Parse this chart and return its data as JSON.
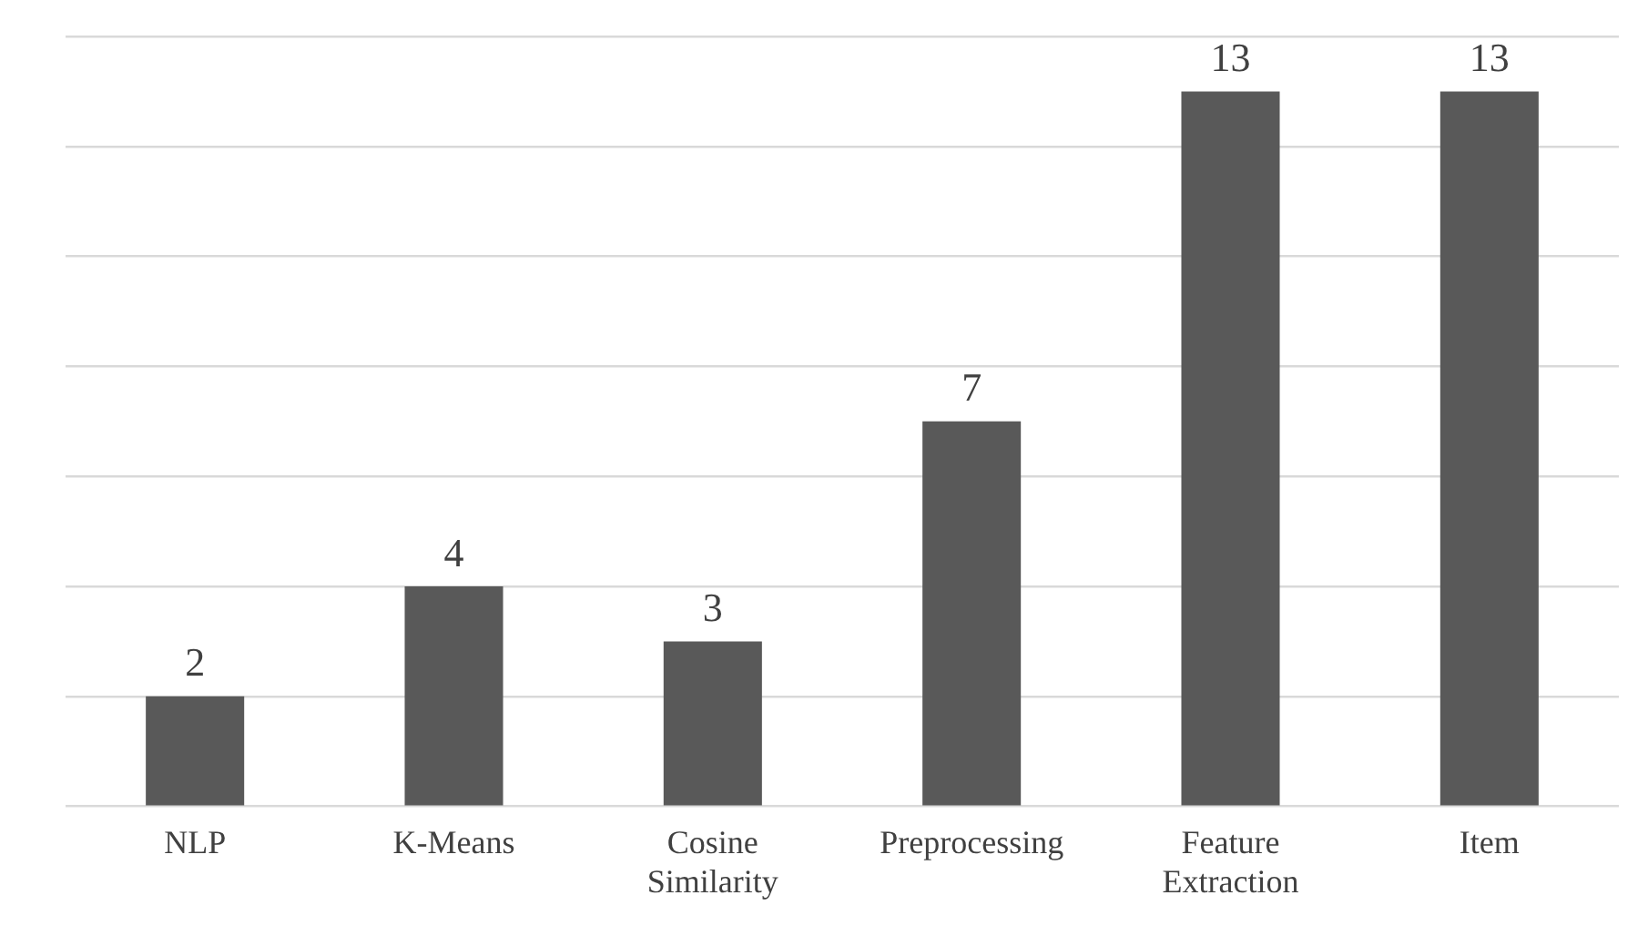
{
  "chart_data": {
    "type": "bar",
    "categories": [
      "NLP",
      "K-Means",
      "Cosine Similarity",
      "Preprocessing",
      "Feature Extraction",
      "Item"
    ],
    "values": [
      2,
      4,
      3,
      7,
      13,
      13
    ],
    "color": "#595959",
    "ylim": [
      0,
      14
    ],
    "yticks": [
      {
        "value": 0,
        "label": null
      },
      {
        "value": 2,
        "label": null
      },
      {
        "value": 4,
        "label": null
      },
      {
        "value": 6,
        "label": null
      },
      {
        "value": 8,
        "label": null
      },
      {
        "value": 10,
        "label": null
      },
      {
        "value": 12,
        "label": null
      },
      {
        "value": 14,
        "label": null
      }
    ],
    "grid": "y",
    "tick_labels": "x",
    "data_labels": true
  }
}
